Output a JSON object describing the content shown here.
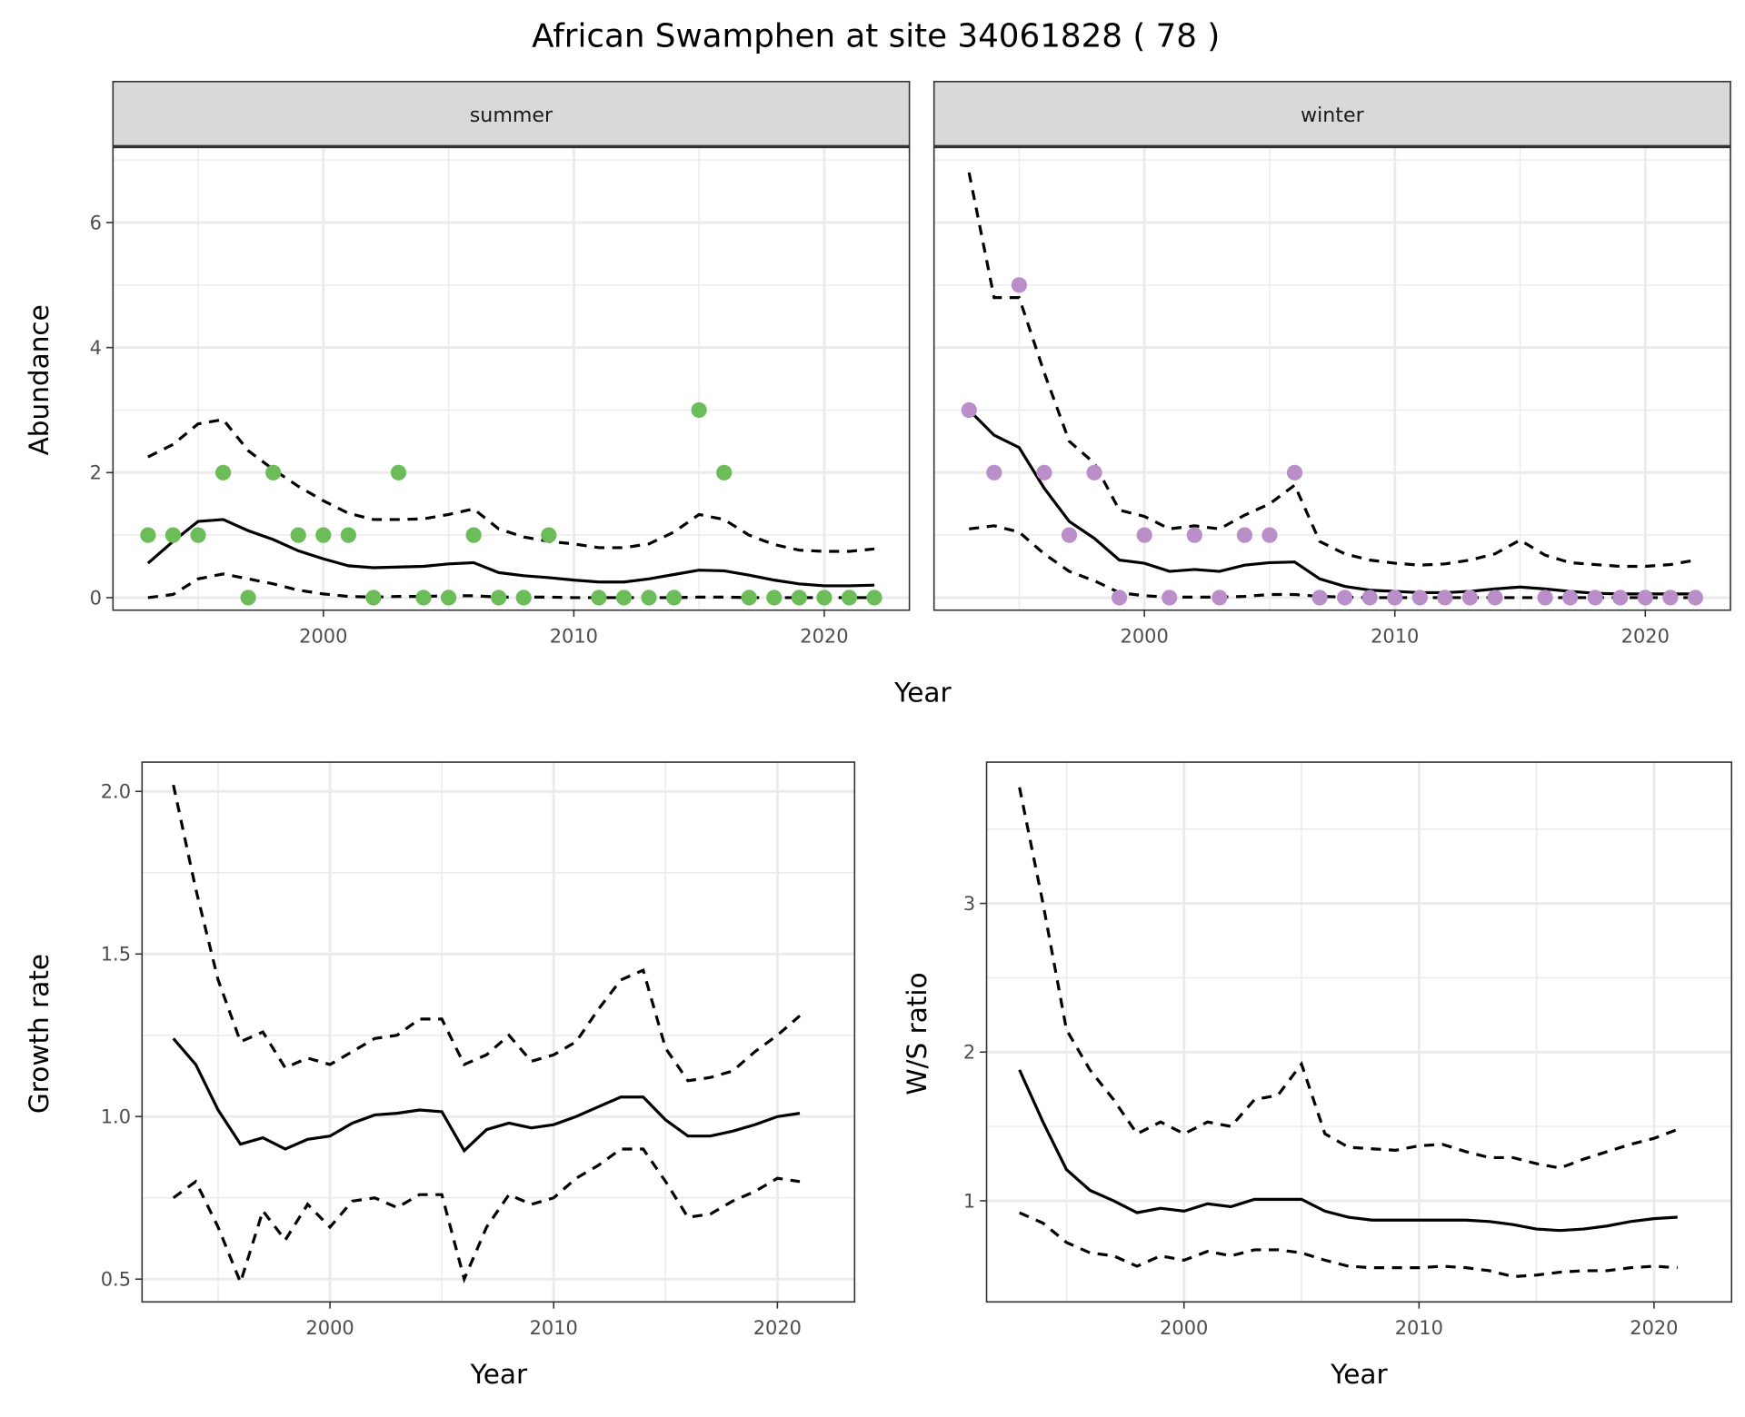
{
  "title": "African Swamphen at site 34061828 ( 78 )",
  "colors": {
    "summer": "#6cbd5a",
    "winter": "#b98ec9",
    "line": "#000000",
    "strip": "#d9d9d9"
  },
  "chart_data": [
    {
      "type": "line",
      "facet": "summer",
      "xlabel": "Year",
      "ylabel": "Abundance",
      "xlim": [
        1991.6,
        2023.4
      ],
      "ylim": [
        -0.2,
        7.2
      ],
      "xticks": [
        2000,
        2010,
        2020
      ],
      "yticks": [
        0,
        2,
        4,
        6
      ],
      "ytick_labels": [
        "0",
        "2",
        "4",
        "6"
      ],
      "xminor": [
        1995,
        2005,
        2015
      ],
      "yminor": [
        1,
        3,
        5,
        7
      ],
      "x": [
        1993,
        1994,
        1995,
        1996,
        1997,
        1998,
        1999,
        2000,
        2001,
        2002,
        2003,
        2004,
        2005,
        2006,
        2007,
        2008,
        2009,
        2010,
        2011,
        2012,
        2013,
        2014,
        2015,
        2016,
        2017,
        2018,
        2019,
        2020,
        2021,
        2022
      ],
      "points": [
        1,
        1,
        1,
        2,
        0,
        2,
        1,
        1,
        1,
        0,
        2,
        0,
        0,
        1,
        0,
        0,
        1,
        null,
        0,
        0,
        0,
        0,
        3,
        2,
        0,
        0,
        0,
        0,
        0,
        0
      ],
      "mean": [
        0.55,
        0.9,
        1.22,
        1.25,
        1.07,
        0.93,
        0.75,
        0.62,
        0.51,
        0.48,
        0.49,
        0.5,
        0.54,
        0.56,
        0.4,
        0.35,
        0.32,
        0.28,
        0.25,
        0.25,
        0.3,
        0.37,
        0.44,
        0.43,
        0.36,
        0.28,
        0.22,
        0.19,
        0.19,
        0.2
      ],
      "upper": [
        2.25,
        2.45,
        2.78,
        2.85,
        2.35,
        2.05,
        1.78,
        1.55,
        1.35,
        1.25,
        1.25,
        1.26,
        1.33,
        1.42,
        1.1,
        0.97,
        0.9,
        0.86,
        0.8,
        0.8,
        0.86,
        1.05,
        1.33,
        1.25,
        1.0,
        0.85,
        0.76,
        0.74,
        0.74,
        0.78
      ],
      "lower": [
        0,
        0.05,
        0.3,
        0.38,
        0.3,
        0.22,
        0.12,
        0.06,
        0.02,
        0.01,
        0.02,
        0.02,
        0.03,
        0.03,
        0.01,
        0.01,
        0.01,
        0,
        0,
        0,
        0,
        0,
        0.01,
        0.01,
        0,
        0,
        0,
        0,
        0,
        0
      ]
    },
    {
      "type": "line",
      "facet": "winter",
      "xlabel": "",
      "ylabel": "",
      "xlim": [
        1991.6,
        2023.4
      ],
      "ylim": [
        -0.2,
        7.2
      ],
      "xticks": [
        2000,
        2010,
        2020
      ],
      "yticks": [
        0,
        2,
        4,
        6
      ],
      "ytick_labels": [],
      "xminor": [
        1995,
        2005,
        2015
      ],
      "yminor": [
        1,
        3,
        5,
        7
      ],
      "x": [
        1993,
        1994,
        1995,
        1996,
        1997,
        1998,
        1999,
        2000,
        2001,
        2002,
        2003,
        2004,
        2005,
        2006,
        2007,
        2008,
        2009,
        2010,
        2011,
        2012,
        2013,
        2014,
        2015,
        2016,
        2017,
        2018,
        2019,
        2020,
        2021,
        2022
      ],
      "points": [
        3,
        2,
        5,
        2,
        1,
        2,
        0,
        1,
        0,
        1,
        0,
        1,
        1,
        2,
        0,
        0,
        0,
        0,
        0,
        0,
        0,
        0,
        null,
        0,
        0,
        0,
        0,
        0,
        0,
        0
      ],
      "mean": [
        3.0,
        2.6,
        2.4,
        1.75,
        1.22,
        0.95,
        0.6,
        0.55,
        0.42,
        0.45,
        0.42,
        0.52,
        0.56,
        0.57,
        0.3,
        0.18,
        0.12,
        0.1,
        0.08,
        0.08,
        0.1,
        0.14,
        0.17,
        0.14,
        0.1,
        0.07,
        0.06,
        0.06,
        0.06,
        0.06
      ],
      "upper": [
        6.8,
        4.8,
        4.8,
        3.6,
        2.5,
        2.15,
        1.4,
        1.3,
        1.1,
        1.15,
        1.1,
        1.32,
        1.5,
        1.8,
        0.9,
        0.7,
        0.6,
        0.55,
        0.52,
        0.54,
        0.6,
        0.7,
        0.92,
        0.68,
        0.56,
        0.53,
        0.5,
        0.5,
        0.53,
        0.6
      ],
      "lower": [
        1.1,
        1.15,
        1.05,
        0.7,
        0.42,
        0.27,
        0.08,
        0.03,
        0.01,
        0.01,
        0.01,
        0.02,
        0.05,
        0.05,
        0.02,
        0.01,
        0,
        0,
        0,
        0,
        0,
        0,
        0,
        0,
        0,
        0,
        0,
        0,
        0,
        0
      ]
    },
    {
      "type": "line",
      "facet": "",
      "xlabel": "Year",
      "ylabel": "Growth rate",
      "xlim": [
        1991.6,
        2023.45
      ],
      "ylim": [
        0.43,
        2.09
      ],
      "xticks": [
        2000,
        2010,
        2020
      ],
      "yticks": [
        0.5,
        1.0,
        1.5,
        2.0
      ],
      "ytick_labels": [
        "0.5",
        "1.0",
        "1.5",
        "2.0"
      ],
      "xminor": [
        1995,
        2005,
        2015
      ],
      "yminor": [
        0.75,
        1.25,
        1.75
      ],
      "x": [
        1993,
        1994,
        1995,
        1996,
        1997,
        1998,
        1999,
        2000,
        2001,
        2002,
        2003,
        2004,
        2005,
        2006,
        2007,
        2008,
        2009,
        2010,
        2011,
        2012,
        2013,
        2014,
        2015,
        2016,
        2017,
        2018,
        2019,
        2020,
        2021
      ],
      "points": [],
      "mean": [
        1.24,
        1.16,
        1.02,
        0.915,
        0.935,
        0.9,
        0.93,
        0.94,
        0.98,
        1.005,
        1.01,
        1.02,
        1.015,
        0.895,
        0.96,
        0.98,
        0.965,
        0.975,
        1.0,
        1.03,
        1.06,
        1.06,
        0.99,
        0.94,
        0.94,
        0.955,
        0.975,
        1.0,
        1.01
      ],
      "upper": [
        2.02,
        1.7,
        1.42,
        1.23,
        1.26,
        1.15,
        1.18,
        1.16,
        1.2,
        1.24,
        1.25,
        1.3,
        1.3,
        1.16,
        1.19,
        1.25,
        1.17,
        1.19,
        1.23,
        1.33,
        1.42,
        1.45,
        1.21,
        1.11,
        1.12,
        1.14,
        1.2,
        1.25,
        1.31
      ],
      "lower": [
        0.75,
        0.8,
        0.66,
        0.49,
        0.71,
        0.62,
        0.73,
        0.66,
        0.74,
        0.75,
        0.72,
        0.76,
        0.76,
        0.5,
        0.66,
        0.76,
        0.73,
        0.75,
        0.81,
        0.85,
        0.9,
        0.9,
        0.8,
        0.69,
        0.7,
        0.74,
        0.77,
        0.81,
        0.8
      ]
    },
    {
      "type": "line",
      "facet": "",
      "xlabel": "Year",
      "ylabel": "W/S ratio",
      "xlim": [
        1991.6,
        2023.3
      ],
      "ylim": [
        0.32,
        3.95
      ],
      "xticks": [
        2000,
        2010,
        2020
      ],
      "yticks": [
        1,
        2,
        3
      ],
      "ytick_labels": [
        "1",
        "2",
        "3"
      ],
      "xminor": [
        1995,
        2005,
        2015
      ],
      "yminor": [
        1.5,
        2.5,
        3.5
      ],
      "x": [
        1993,
        1994,
        1995,
        1996,
        1997,
        1998,
        1999,
        2000,
        2001,
        2002,
        2003,
        2004,
        2005,
        2006,
        2007,
        2008,
        2009,
        2010,
        2011,
        2012,
        2013,
        2014,
        2015,
        2016,
        2017,
        2018,
        2019,
        2020,
        2021
      ],
      "points": [],
      "mean": [
        1.88,
        1.53,
        1.21,
        1.07,
        1.0,
        0.92,
        0.95,
        0.93,
        0.98,
        0.96,
        1.01,
        1.01,
        1.01,
        0.93,
        0.89,
        0.87,
        0.87,
        0.87,
        0.87,
        0.87,
        0.86,
        0.84,
        0.81,
        0.8,
        0.81,
        0.83,
        0.86,
        0.88,
        0.89
      ],
      "upper": [
        3.78,
        3.0,
        2.15,
        1.88,
        1.68,
        1.45,
        1.53,
        1.45,
        1.53,
        1.5,
        1.68,
        1.71,
        1.92,
        1.45,
        1.36,
        1.35,
        1.34,
        1.37,
        1.38,
        1.33,
        1.29,
        1.29,
        1.25,
        1.22,
        1.28,
        1.33,
        1.38,
        1.42,
        1.48
      ],
      "lower": [
        0.92,
        0.85,
        0.72,
        0.65,
        0.63,
        0.56,
        0.63,
        0.6,
        0.66,
        0.63,
        0.67,
        0.67,
        0.65,
        0.6,
        0.56,
        0.55,
        0.55,
        0.55,
        0.56,
        0.55,
        0.53,
        0.49,
        0.5,
        0.52,
        0.53,
        0.53,
        0.55,
        0.56,
        0.55
      ]
    }
  ]
}
